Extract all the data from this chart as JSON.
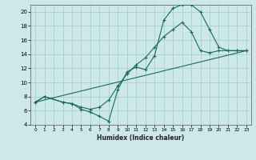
{
  "xlabel": "Humidex (Indice chaleur)",
  "bg_color": "#cce8e8",
  "grid_color": "#aacfcf",
  "line_color": "#1a6b5a",
  "xlim": [
    -0.5,
    23.5
  ],
  "ylim": [
    4,
    21
  ],
  "yticks": [
    4,
    6,
    8,
    10,
    12,
    14,
    16,
    18,
    20
  ],
  "xticks": [
    0,
    1,
    2,
    3,
    4,
    5,
    6,
    7,
    8,
    9,
    10,
    11,
    12,
    13,
    14,
    15,
    16,
    17,
    18,
    19,
    20,
    21,
    22,
    23
  ],
  "line1_x": [
    0,
    1,
    3,
    4,
    5,
    6,
    7,
    8,
    9,
    10,
    11,
    12,
    13,
    14,
    15,
    16,
    17,
    18,
    19,
    20,
    21,
    22,
    23
  ],
  "line1_y": [
    7.2,
    8.0,
    7.2,
    7.0,
    6.2,
    5.8,
    5.2,
    4.5,
    9.0,
    11.5,
    12.2,
    11.8,
    13.8,
    18.8,
    20.5,
    21.0,
    21.0,
    20.0,
    17.5,
    15.0,
    14.5,
    14.5,
    14.5
  ],
  "line2_x": [
    0,
    1,
    3,
    4,
    5,
    6,
    7,
    8,
    9,
    10,
    11,
    12,
    13,
    14,
    15,
    16,
    17,
    18,
    19,
    20,
    21,
    22,
    23
  ],
  "line2_y": [
    7.2,
    8.0,
    7.2,
    7.0,
    6.5,
    6.2,
    6.5,
    7.5,
    9.5,
    11.2,
    12.5,
    13.5,
    15.0,
    16.5,
    17.5,
    18.5,
    17.2,
    14.5,
    14.2,
    14.5,
    14.5,
    14.5,
    14.5
  ],
  "line3_x": [
    0,
    23
  ],
  "line3_y": [
    7.2,
    14.5
  ]
}
